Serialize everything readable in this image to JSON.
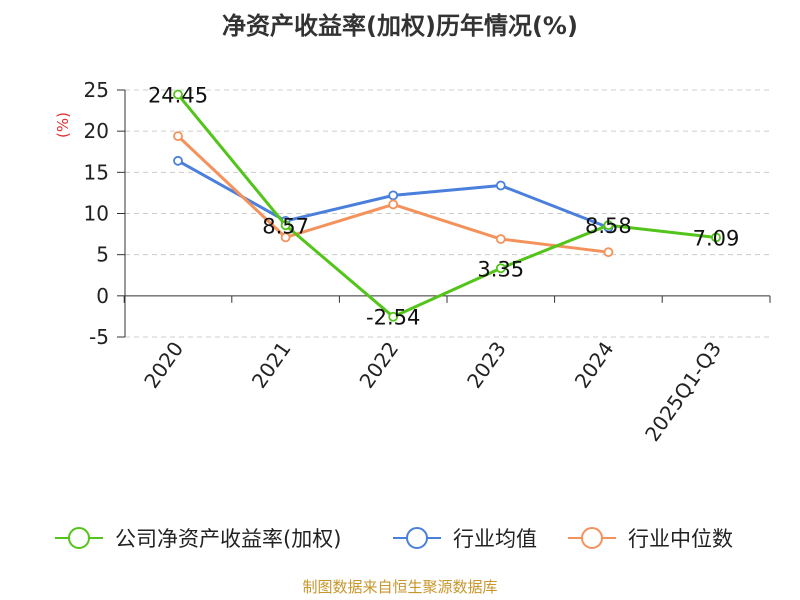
{
  "chart_data": {
    "type": "line",
    "title": "净资产收益率(加权)历年情况(%)",
    "ylabel": "(%)",
    "xlabel": "",
    "categories": [
      "2020",
      "2021",
      "2022",
      "2023",
      "2024",
      "2025Q1-Q3"
    ],
    "yticks": [
      25,
      20,
      15,
      10,
      5,
      0,
      -5
    ],
    "ylim": [
      -5,
      25
    ],
    "grid": true,
    "legend_position": "bottom",
    "series": [
      {
        "name": "公司净资产收益率(加权)",
        "color": "#52c41a",
        "values": [
          24.45,
          8.57,
          -2.54,
          3.35,
          8.58,
          7.09
        ],
        "labels": [
          "24.45",
          "8.57",
          "-2.54",
          "3.35",
          "8.58",
          "7.09"
        ]
      },
      {
        "name": "行业均值",
        "color": "#4a7fdc",
        "values": [
          16.4,
          9.1,
          12.2,
          13.4,
          8.3,
          null
        ]
      },
      {
        "name": "行业中位数",
        "color": "#f4925c",
        "values": [
          19.4,
          7.1,
          11.1,
          6.9,
          5.3,
          null
        ]
      }
    ]
  },
  "footer": {
    "source": "制图数据来自恒生聚源数据库",
    "source_color": "#c9962c"
  },
  "colors": {
    "ylabel": "#e03030",
    "grid": "#cccccc",
    "axis": "#333333"
  }
}
